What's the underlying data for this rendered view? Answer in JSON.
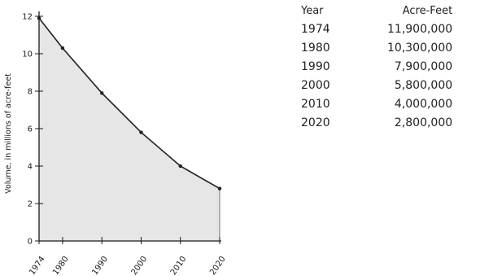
{
  "chart_data": {
    "type": "area",
    "x": [
      1974,
      1980,
      1990,
      2000,
      2010,
      2020
    ],
    "tick_labels_x": [
      "1974",
      "1980",
      "1990",
      "2000",
      "2010",
      "2020"
    ],
    "values": [
      11.9,
      10.3,
      7.9,
      5.8,
      4.0,
      2.8
    ],
    "ylabel": "Volume, in millions of acre-feet",
    "xlabel": "",
    "title": "",
    "xlim": [
      1974,
      2020
    ],
    "ylim": [
      0,
      12
    ],
    "yticks": [
      0,
      2,
      4,
      6,
      8,
      10,
      12
    ],
    "tick_labels_y": [
      "0",
      "2",
      "4",
      "6",
      "8",
      "10",
      "12"
    ],
    "grid": false,
    "line_color": "#1f1f1f",
    "fill_color": "#e6e6e6"
  },
  "table": {
    "headers": [
      "Year",
      "Acre-Feet"
    ],
    "rows": [
      [
        "1974",
        "11,900,000"
      ],
      [
        "1980",
        "10,300,000"
      ],
      [
        "1990",
        "7,900,000"
      ],
      [
        "2000",
        "5,800,000"
      ],
      [
        "2010",
        "4,000,000"
      ],
      [
        "2020",
        "2,800,000"
      ]
    ]
  }
}
